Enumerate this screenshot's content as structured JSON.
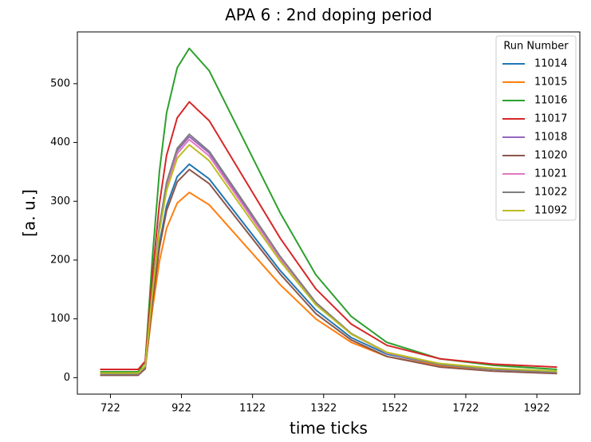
{
  "chart_data": {
    "type": "line",
    "title": "APA 6 :  2nd doping period",
    "x_label": "time ticks",
    "y_label": "[a. u.]",
    "legend_title": "Run Number",
    "legend_position": "upper right",
    "x": [
      693,
      800,
      820,
      840,
      860,
      880,
      910,
      944,
      1000,
      1100,
      1200,
      1300,
      1400,
      1500,
      1650,
      1800,
      1979
    ],
    "xlim": [
      629,
      2043
    ],
    "xticks": [
      722,
      922,
      1122,
      1322,
      1522,
      1722,
      1922
    ],
    "ylim": [
      -28,
      588
    ],
    "yticks": [
      0,
      100,
      200,
      300,
      400,
      500
    ],
    "series": [
      {
        "name": "11014",
        "color": "#1f77b4",
        "values": [
          8,
          8,
          19,
          132,
          228,
          292,
          342,
          363,
          338,
          260,
          182,
          115,
          68,
          40,
          22,
          15,
          11
        ]
      },
      {
        "name": "11015",
        "color": "#ff7f0e",
        "values": [
          8,
          8,
          17,
          115,
          198,
          254,
          297,
          315,
          294,
          226,
          158,
          100,
          60,
          36,
          20,
          14,
          10
        ]
      },
      {
        "name": "11016",
        "color": "#2ca02c",
        "values": [
          10,
          10,
          27,
          203,
          351,
          450,
          527,
          560,
          522,
          401,
          280,
          175,
          104,
          60,
          32,
          21,
          14
        ]
      },
      {
        "name": "11017",
        "color": "#d62728",
        "values": [
          14,
          14,
          28,
          173,
          296,
          378,
          442,
          469,
          437,
          337,
          237,
          151,
          91,
          55,
          32,
          23,
          18
        ]
      },
      {
        "name": "11018",
        "color": "#9467bd",
        "values": [
          6,
          6,
          18,
          147,
          256,
          329,
          386,
          410,
          382,
          293,
          204,
          127,
          75,
          42,
          22,
          14,
          9
        ]
      },
      {
        "name": "11020",
        "color": "#8c564b",
        "values": [
          4,
          4,
          15,
          127,
          221,
          284,
          333,
          354,
          330,
          253,
          176,
          109,
          64,
          36,
          18,
          11,
          7
        ]
      },
      {
        "name": "11021",
        "color": "#e377c2",
        "values": [
          6,
          6,
          18,
          146,
          253,
          325,
          381,
          405,
          377,
          289,
          202,
          126,
          74,
          42,
          22,
          14,
          9
        ]
      },
      {
        "name": "11022",
        "color": "#7f7f7f",
        "values": [
          6,
          6,
          18,
          149,
          259,
          332,
          390,
          414,
          385,
          296,
          206,
          128,
          75,
          43,
          22,
          14,
          9
        ]
      },
      {
        "name": "11092",
        "color": "#bcbd22",
        "values": [
          8,
          8,
          20,
          144,
          249,
          318,
          373,
          396,
          369,
          283,
          198,
          124,
          74,
          43,
          24,
          16,
          11
        ]
      }
    ]
  }
}
